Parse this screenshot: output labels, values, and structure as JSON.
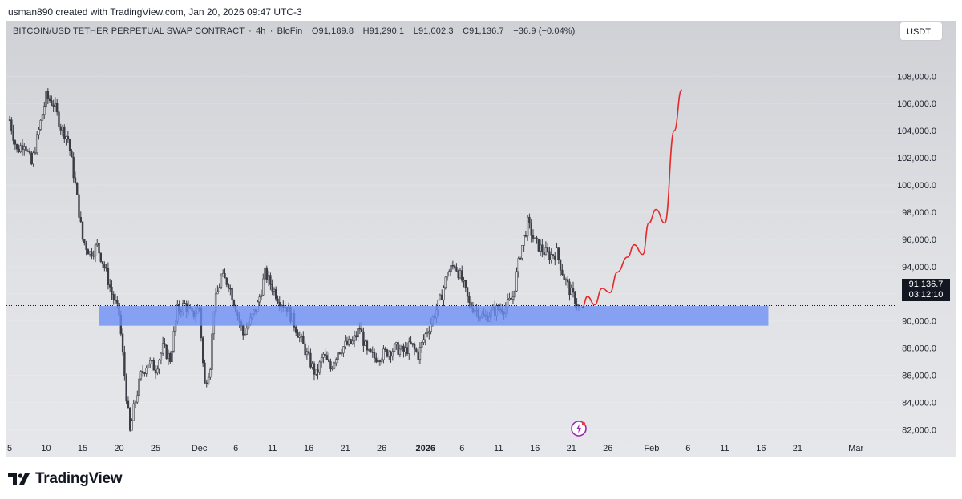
{
  "caption": "usman890 created with TradingView.com, Jan 20, 2026 09:47 UTC-3",
  "symbol": {
    "name": "BITCOIN/USD TETHER PERPETUAL SWAP CONTRACT",
    "interval": "4h",
    "exchange": "BloFin",
    "open": "O91,189.8",
    "high": "H91,290.1",
    "low": "L91,002.3",
    "close": "C91,136.7",
    "change": "−36.9 (−0.04%)"
  },
  "currency_button": "USDT",
  "price_label": {
    "price": "91,136.7",
    "countdown": "03:12:10"
  },
  "logo_text": "TradingView",
  "colors": {
    "candle": "#3a3d45",
    "zone": "#6b8ef5",
    "projection": "#e52a2a",
    "last_price_line": "#131722",
    "event_icon": "#9c27b0"
  },
  "chart_data": {
    "type": "line",
    "description_type": "candlestick",
    "ylim": [
      80500,
      109500
    ],
    "y_ticks": [
      {
        "value": 108000,
        "label": "108,000.0"
      },
      {
        "value": 106000,
        "label": "106,000.0"
      },
      {
        "value": 104000,
        "label": "104,000.0"
      },
      {
        "value": 102000,
        "label": "102,000.0"
      },
      {
        "value": 100000,
        "label": "100,000.0"
      },
      {
        "value": 98000,
        "label": "98,000.0"
      },
      {
        "value": 96000,
        "label": "96,000.0"
      },
      {
        "value": 94000,
        "label": "94,000.0"
      },
      {
        "value": 92000,
        "label": "92,000.0"
      },
      {
        "value": 90000,
        "label": "90,000.0"
      },
      {
        "value": 88000,
        "label": "88,000.0"
      },
      {
        "value": 86000,
        "label": "86,000.0"
      },
      {
        "value": 84000,
        "label": "84,000.0"
      },
      {
        "value": 82000,
        "label": "82,000.0"
      }
    ],
    "x_ticks": [
      {
        "t": 0,
        "label": "5",
        "bold": false
      },
      {
        "t": 5,
        "label": "10",
        "bold": false
      },
      {
        "t": 10,
        "label": "15",
        "bold": false
      },
      {
        "t": 15,
        "label": "20",
        "bold": false
      },
      {
        "t": 20,
        "label": "25",
        "bold": false
      },
      {
        "t": 26,
        "label": "Dec",
        "bold": false
      },
      {
        "t": 31,
        "label": "6",
        "bold": false
      },
      {
        "t": 36,
        "label": "11",
        "bold": false
      },
      {
        "t": 41,
        "label": "16",
        "bold": false
      },
      {
        "t": 46,
        "label": "21",
        "bold": false
      },
      {
        "t": 51,
        "label": "26",
        "bold": false
      },
      {
        "t": 57,
        "label": "2026",
        "bold": true
      },
      {
        "t": 62,
        "label": "6",
        "bold": false
      },
      {
        "t": 67,
        "label": "11",
        "bold": false
      },
      {
        "t": 72,
        "label": "16",
        "bold": false
      },
      {
        "t": 77,
        "label": "21",
        "bold": false
      },
      {
        "t": 82,
        "label": "26",
        "bold": false
      },
      {
        "t": 88,
        "label": "Feb",
        "bold": false
      },
      {
        "t": 93,
        "label": "6",
        "bold": false
      },
      {
        "t": 98,
        "label": "11",
        "bold": false
      },
      {
        "t": 103,
        "label": "16",
        "bold": false
      },
      {
        "t": 108,
        "label": "21",
        "bold": false
      },
      {
        "t": 116,
        "label": "Mar",
        "bold": false
      }
    ],
    "price_path": [
      [
        0,
        104800
      ],
      [
        1,
        102500
      ],
      [
        2,
        103200
      ],
      [
        3,
        101500
      ],
      [
        4,
        104000
      ],
      [
        5,
        106500
      ],
      [
        6,
        106000
      ],
      [
        7,
        104300
      ],
      [
        8,
        103400
      ],
      [
        9,
        100000
      ],
      [
        10,
        96000
      ],
      [
        11,
        95000
      ],
      [
        12,
        95500
      ],
      [
        13,
        94000
      ],
      [
        14,
        92000
      ],
      [
        15,
        90500
      ],
      [
        16,
        84500
      ],
      [
        16.5,
        81800
      ],
      [
        17,
        83500
      ],
      [
        18,
        86000
      ],
      [
        19,
        87000
      ],
      [
        20,
        86500
      ],
      [
        21,
        88000
      ],
      [
        22,
        87200
      ],
      [
        23,
        90800
      ],
      [
        24,
        91200
      ],
      [
        25,
        90400
      ],
      [
        26,
        91000
      ],
      [
        26.7,
        85200
      ],
      [
        27.5,
        86800
      ],
      [
        28,
        91000
      ],
      [
        29,
        93200
      ],
      [
        30,
        92800
      ],
      [
        31,
        91000
      ],
      [
        32,
        89000
      ],
      [
        33,
        90000
      ],
      [
        34,
        91200
      ],
      [
        35,
        93500
      ],
      [
        36,
        92500
      ],
      [
        37,
        91500
      ],
      [
        38,
        91000
      ],
      [
        39,
        89800
      ],
      [
        40,
        88500
      ],
      [
        41,
        87200
      ],
      [
        42,
        86000
      ],
      [
        43,
        87500
      ],
      [
        44,
        86500
      ],
      [
        45,
        87800
      ],
      [
        46,
        88200
      ],
      [
        47,
        88400
      ],
      [
        48,
        89500
      ],
      [
        49,
        87600
      ],
      [
        50,
        87300
      ],
      [
        51,
        87500
      ],
      [
        52,
        87800
      ],
      [
        53,
        88000
      ],
      [
        54,
        87700
      ],
      [
        55,
        88200
      ],
      [
        56,
        87500
      ],
      [
        57,
        89000
      ],
      [
        58,
        90200
      ],
      [
        59,
        91500
      ],
      [
        60,
        93500
      ],
      [
        61,
        94200
      ],
      [
        62,
        93000
      ],
      [
        63,
        91200
      ],
      [
        64,
        90800
      ],
      [
        65,
        90200
      ],
      [
        66,
        90600
      ],
      [
        67,
        90900
      ],
      [
        68,
        91000
      ],
      [
        69,
        91800
      ],
      [
        70,
        95000
      ],
      [
        71,
        97200
      ],
      [
        72,
        95800
      ],
      [
        73,
        95200
      ],
      [
        74,
        94800
      ],
      [
        75,
        95000
      ],
      [
        76,
        93200
      ],
      [
        77,
        92000
      ],
      [
        78,
        91136.7
      ]
    ],
    "support_zone": {
      "t_start": 12.3,
      "t_end": 104,
      "low": 89650,
      "high": 91100
    },
    "last_price": 91136.7,
    "projection": [
      [
        78.5,
        91000
      ],
      [
        79.2,
        91800
      ],
      [
        80.2,
        91200
      ],
      [
        81.2,
        92400
      ],
      [
        82.3,
        92100
      ],
      [
        83.3,
        93600
      ],
      [
        84.7,
        94700
      ],
      [
        85.6,
        95600
      ],
      [
        86.8,
        94900
      ],
      [
        87.6,
        97200
      ],
      [
        88.6,
        98200
      ],
      [
        89.8,
        97200
      ],
      [
        91.1,
        104000
      ],
      [
        92.1,
        107000
      ]
    ]
  }
}
